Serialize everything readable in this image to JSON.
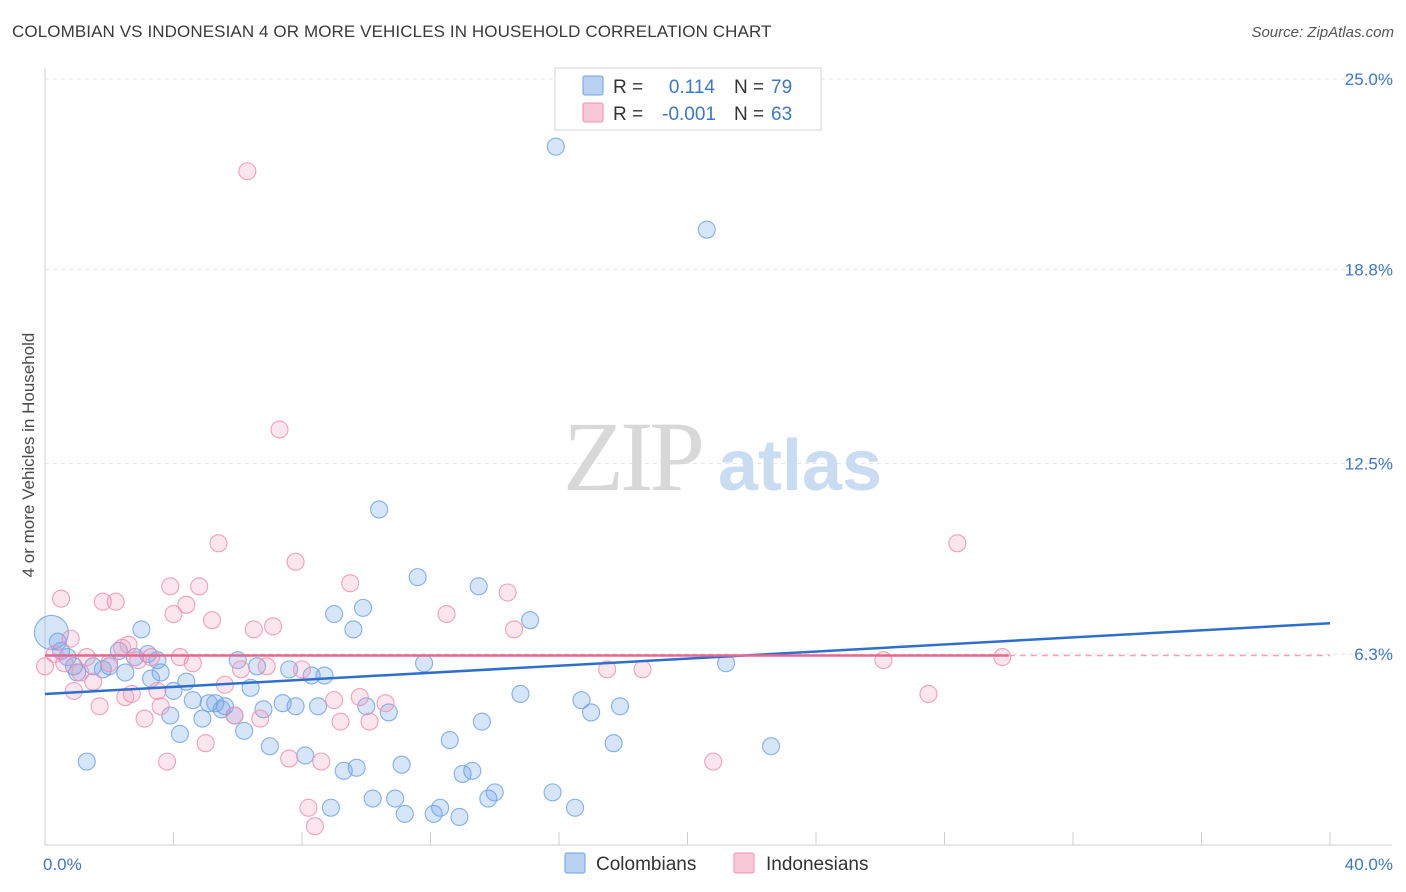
{
  "title": "COLOMBIAN VS INDONESIAN 4 OR MORE VEHICLES IN HOUSEHOLD CORRELATION CHART",
  "source": "Source: ZipAtlas.com",
  "watermark": {
    "zip": "ZIP",
    "atlas": "atlas"
  },
  "legend_top": [
    {
      "r_label": "R =",
      "r_value": "0.114",
      "n_label": "N =",
      "n_value": "79",
      "color": "#6fa3e6"
    },
    {
      "r_label": "R =",
      "r_value": "-0.001",
      "n_label": "N =",
      "n_value": "63",
      "color": "#f08fb0"
    }
  ],
  "legend_bottom": [
    "Colombians",
    "Indonesians"
  ],
  "chart_data": {
    "type": "scatter",
    "xlabel": "",
    "ylabel": "4 or more Vehicles in Household",
    "xlim": [
      0,
      40
    ],
    "ylim": [
      0,
      26
    ],
    "x_tick_labels": [
      {
        "v": 0,
        "label": "0.0%"
      },
      {
        "v": 40,
        "label": "40.0%"
      }
    ],
    "x_minor_ticks": [
      4,
      8,
      12,
      16,
      20,
      24,
      28,
      32,
      36,
      40
    ],
    "y_ticks": [
      {
        "v": 6.3,
        "label": "6.3%"
      },
      {
        "v": 12.5,
        "label": "12.5%"
      },
      {
        "v": 18.8,
        "label": "18.8%"
      },
      {
        "v": 25.0,
        "label": "25.0%"
      }
    ],
    "grid": true,
    "series": [
      {
        "name": "Colombians",
        "color": "#6fa3e6",
        "trend": {
          "x0": 0,
          "y0": 5.0,
          "x1": 40,
          "y1": 7.3
        },
        "points": [
          [
            0.2,
            7.0
          ],
          [
            0.4,
            6.7
          ],
          [
            0.5,
            6.4
          ],
          [
            0.7,
            6.2
          ],
          [
            0.9,
            5.9
          ],
          [
            1.0,
            5.7
          ],
          [
            1.3,
            2.8
          ],
          [
            1.5,
            5.9
          ],
          [
            1.8,
            5.8
          ],
          [
            2.0,
            5.9
          ],
          [
            2.3,
            6.4
          ],
          [
            2.5,
            5.7
          ],
          [
            2.8,
            6.2
          ],
          [
            3.0,
            7.1
          ],
          [
            3.2,
            6.3
          ],
          [
            3.3,
            5.5
          ],
          [
            3.5,
            6.1
          ],
          [
            3.6,
            5.7
          ],
          [
            3.9,
            4.3
          ],
          [
            4.0,
            5.1
          ],
          [
            4.2,
            3.7
          ],
          [
            4.4,
            5.4
          ],
          [
            4.6,
            4.8
          ],
          [
            4.9,
            4.2
          ],
          [
            5.1,
            4.7
          ],
          [
            5.3,
            4.7
          ],
          [
            5.5,
            4.5
          ],
          [
            5.6,
            4.6
          ],
          [
            5.9,
            4.3
          ],
          [
            6.0,
            6.1
          ],
          [
            6.2,
            3.8
          ],
          [
            6.4,
            5.2
          ],
          [
            6.6,
            5.9
          ],
          [
            6.8,
            4.5
          ],
          [
            7.0,
            3.3
          ],
          [
            7.4,
            4.7
          ],
          [
            7.6,
            5.8
          ],
          [
            7.8,
            4.6
          ],
          [
            8.1,
            3.0
          ],
          [
            8.3,
            5.6
          ],
          [
            8.5,
            4.6
          ],
          [
            8.7,
            5.6
          ],
          [
            8.9,
            1.3
          ],
          [
            9.0,
            7.6
          ],
          [
            9.3,
            2.5
          ],
          [
            9.6,
            7.1
          ],
          [
            9.7,
            2.6
          ],
          [
            9.9,
            7.8
          ],
          [
            10.0,
            4.6
          ],
          [
            10.2,
            1.6
          ],
          [
            10.4,
            11.0
          ],
          [
            10.7,
            4.4
          ],
          [
            10.9,
            1.6
          ],
          [
            11.1,
            2.7
          ],
          [
            11.2,
            1.1
          ],
          [
            11.6,
            8.8
          ],
          [
            11.8,
            6.0
          ],
          [
            12.1,
            1.1
          ],
          [
            12.3,
            1.3
          ],
          [
            12.6,
            3.5
          ],
          [
            12.9,
            1.0
          ],
          [
            13.0,
            2.4
          ],
          [
            13.3,
            2.5
          ],
          [
            13.5,
            8.5
          ],
          [
            13.6,
            4.1
          ],
          [
            13.8,
            1.6
          ],
          [
            14.0,
            1.8
          ],
          [
            14.8,
            5.0
          ],
          [
            15.1,
            7.4
          ],
          [
            15.8,
            1.8
          ],
          [
            15.9,
            22.8
          ],
          [
            16.5,
            1.3
          ],
          [
            16.7,
            4.8
          ],
          [
            17.0,
            4.4
          ],
          [
            17.7,
            3.4
          ],
          [
            17.9,
            4.6
          ],
          [
            20.6,
            20.1
          ],
          [
            21.2,
            6.0
          ],
          [
            22.6,
            3.3
          ]
        ]
      },
      {
        "name": "Indonesians",
        "color": "#f08fb0",
        "trend": {
          "x0": 0,
          "y0": 6.25,
          "x1": 30,
          "y1": 6.25,
          "dash_to": 40
        },
        "points": [
          [
            0.0,
            5.9
          ],
          [
            0.3,
            6.3
          ],
          [
            0.5,
            8.1
          ],
          [
            0.6,
            6.0
          ],
          [
            0.8,
            6.8
          ],
          [
            0.9,
            5.1
          ],
          [
            1.1,
            5.7
          ],
          [
            1.3,
            6.2
          ],
          [
            1.5,
            5.4
          ],
          [
            1.7,
            4.6
          ],
          [
            1.8,
            8.0
          ],
          [
            2.0,
            6.0
          ],
          [
            2.2,
            8.0
          ],
          [
            2.4,
            6.5
          ],
          [
            2.5,
            4.9
          ],
          [
            2.6,
            6.6
          ],
          [
            2.7,
            5.0
          ],
          [
            2.9,
            6.1
          ],
          [
            3.1,
            4.2
          ],
          [
            3.3,
            6.2
          ],
          [
            3.5,
            5.1
          ],
          [
            3.6,
            4.6
          ],
          [
            3.8,
            2.8
          ],
          [
            3.9,
            8.5
          ],
          [
            4.0,
            7.6
          ],
          [
            4.2,
            6.2
          ],
          [
            4.4,
            7.9
          ],
          [
            4.6,
            6.0
          ],
          [
            4.8,
            8.5
          ],
          [
            5.0,
            3.4
          ],
          [
            5.2,
            7.4
          ],
          [
            5.4,
            9.9
          ],
          [
            5.6,
            5.3
          ],
          [
            5.9,
            4.3
          ],
          [
            6.1,
            5.8
          ],
          [
            6.3,
            22.0
          ],
          [
            6.5,
            7.1
          ],
          [
            6.7,
            4.2
          ],
          [
            6.9,
            5.9
          ],
          [
            7.1,
            7.2
          ],
          [
            7.3,
            13.6
          ],
          [
            7.6,
            2.9
          ],
          [
            7.8,
            9.3
          ],
          [
            8.0,
            5.8
          ],
          [
            8.2,
            1.3
          ],
          [
            8.4,
            0.7
          ],
          [
            8.6,
            2.8
          ],
          [
            9.0,
            4.8
          ],
          [
            9.2,
            4.1
          ],
          [
            9.5,
            8.6
          ],
          [
            9.8,
            4.9
          ],
          [
            10.1,
            4.1
          ],
          [
            10.6,
            4.7
          ],
          [
            12.5,
            7.6
          ],
          [
            14.4,
            8.3
          ],
          [
            14.6,
            7.1
          ],
          [
            17.5,
            5.8
          ],
          [
            18.6,
            5.8
          ],
          [
            20.8,
            2.8
          ],
          [
            26.1,
            6.1
          ],
          [
            27.5,
            5.0
          ],
          [
            28.4,
            9.9
          ],
          [
            29.8,
            6.2
          ]
        ]
      }
    ]
  }
}
